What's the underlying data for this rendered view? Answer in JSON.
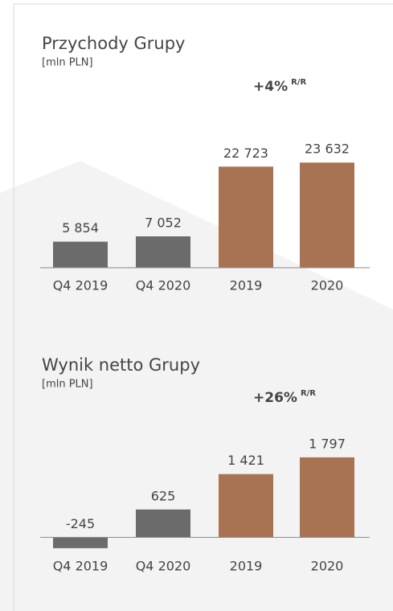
{
  "chart_data": [
    {
      "type": "bar",
      "title": "Przychody Grupy",
      "subtitle": "[mln PLN]",
      "annotation": "+4%",
      "annotation_suffix": "R/R",
      "categories": [
        "Q4 2019",
        "Q4 2020",
        "2019",
        "2020"
      ],
      "values": [
        5854,
        7052,
        22723,
        23632
      ],
      "value_labels": [
        "5 854",
        "7 052",
        "22 723",
        "23 632"
      ],
      "colors": [
        "#6b6b6b",
        "#6b6b6b",
        "#a87352",
        "#a87352"
      ],
      "ylim": [
        0,
        30000
      ]
    },
    {
      "type": "bar",
      "title": "Wynik netto Grupy",
      "subtitle": "[mln PLN]",
      "annotation": "+26%",
      "annotation_suffix": "R/R",
      "categories": [
        "Q4 2019",
        "Q4 2020",
        "2019",
        "2020"
      ],
      "values": [
        -245,
        625,
        1421,
        1797
      ],
      "value_labels": [
        "-245",
        "625",
        "1 421",
        "1 797"
      ],
      "colors": [
        "#6b6b6b",
        "#6b6b6b",
        "#a87352",
        "#a87352"
      ],
      "ylim": [
        -500,
        2500
      ]
    }
  ]
}
